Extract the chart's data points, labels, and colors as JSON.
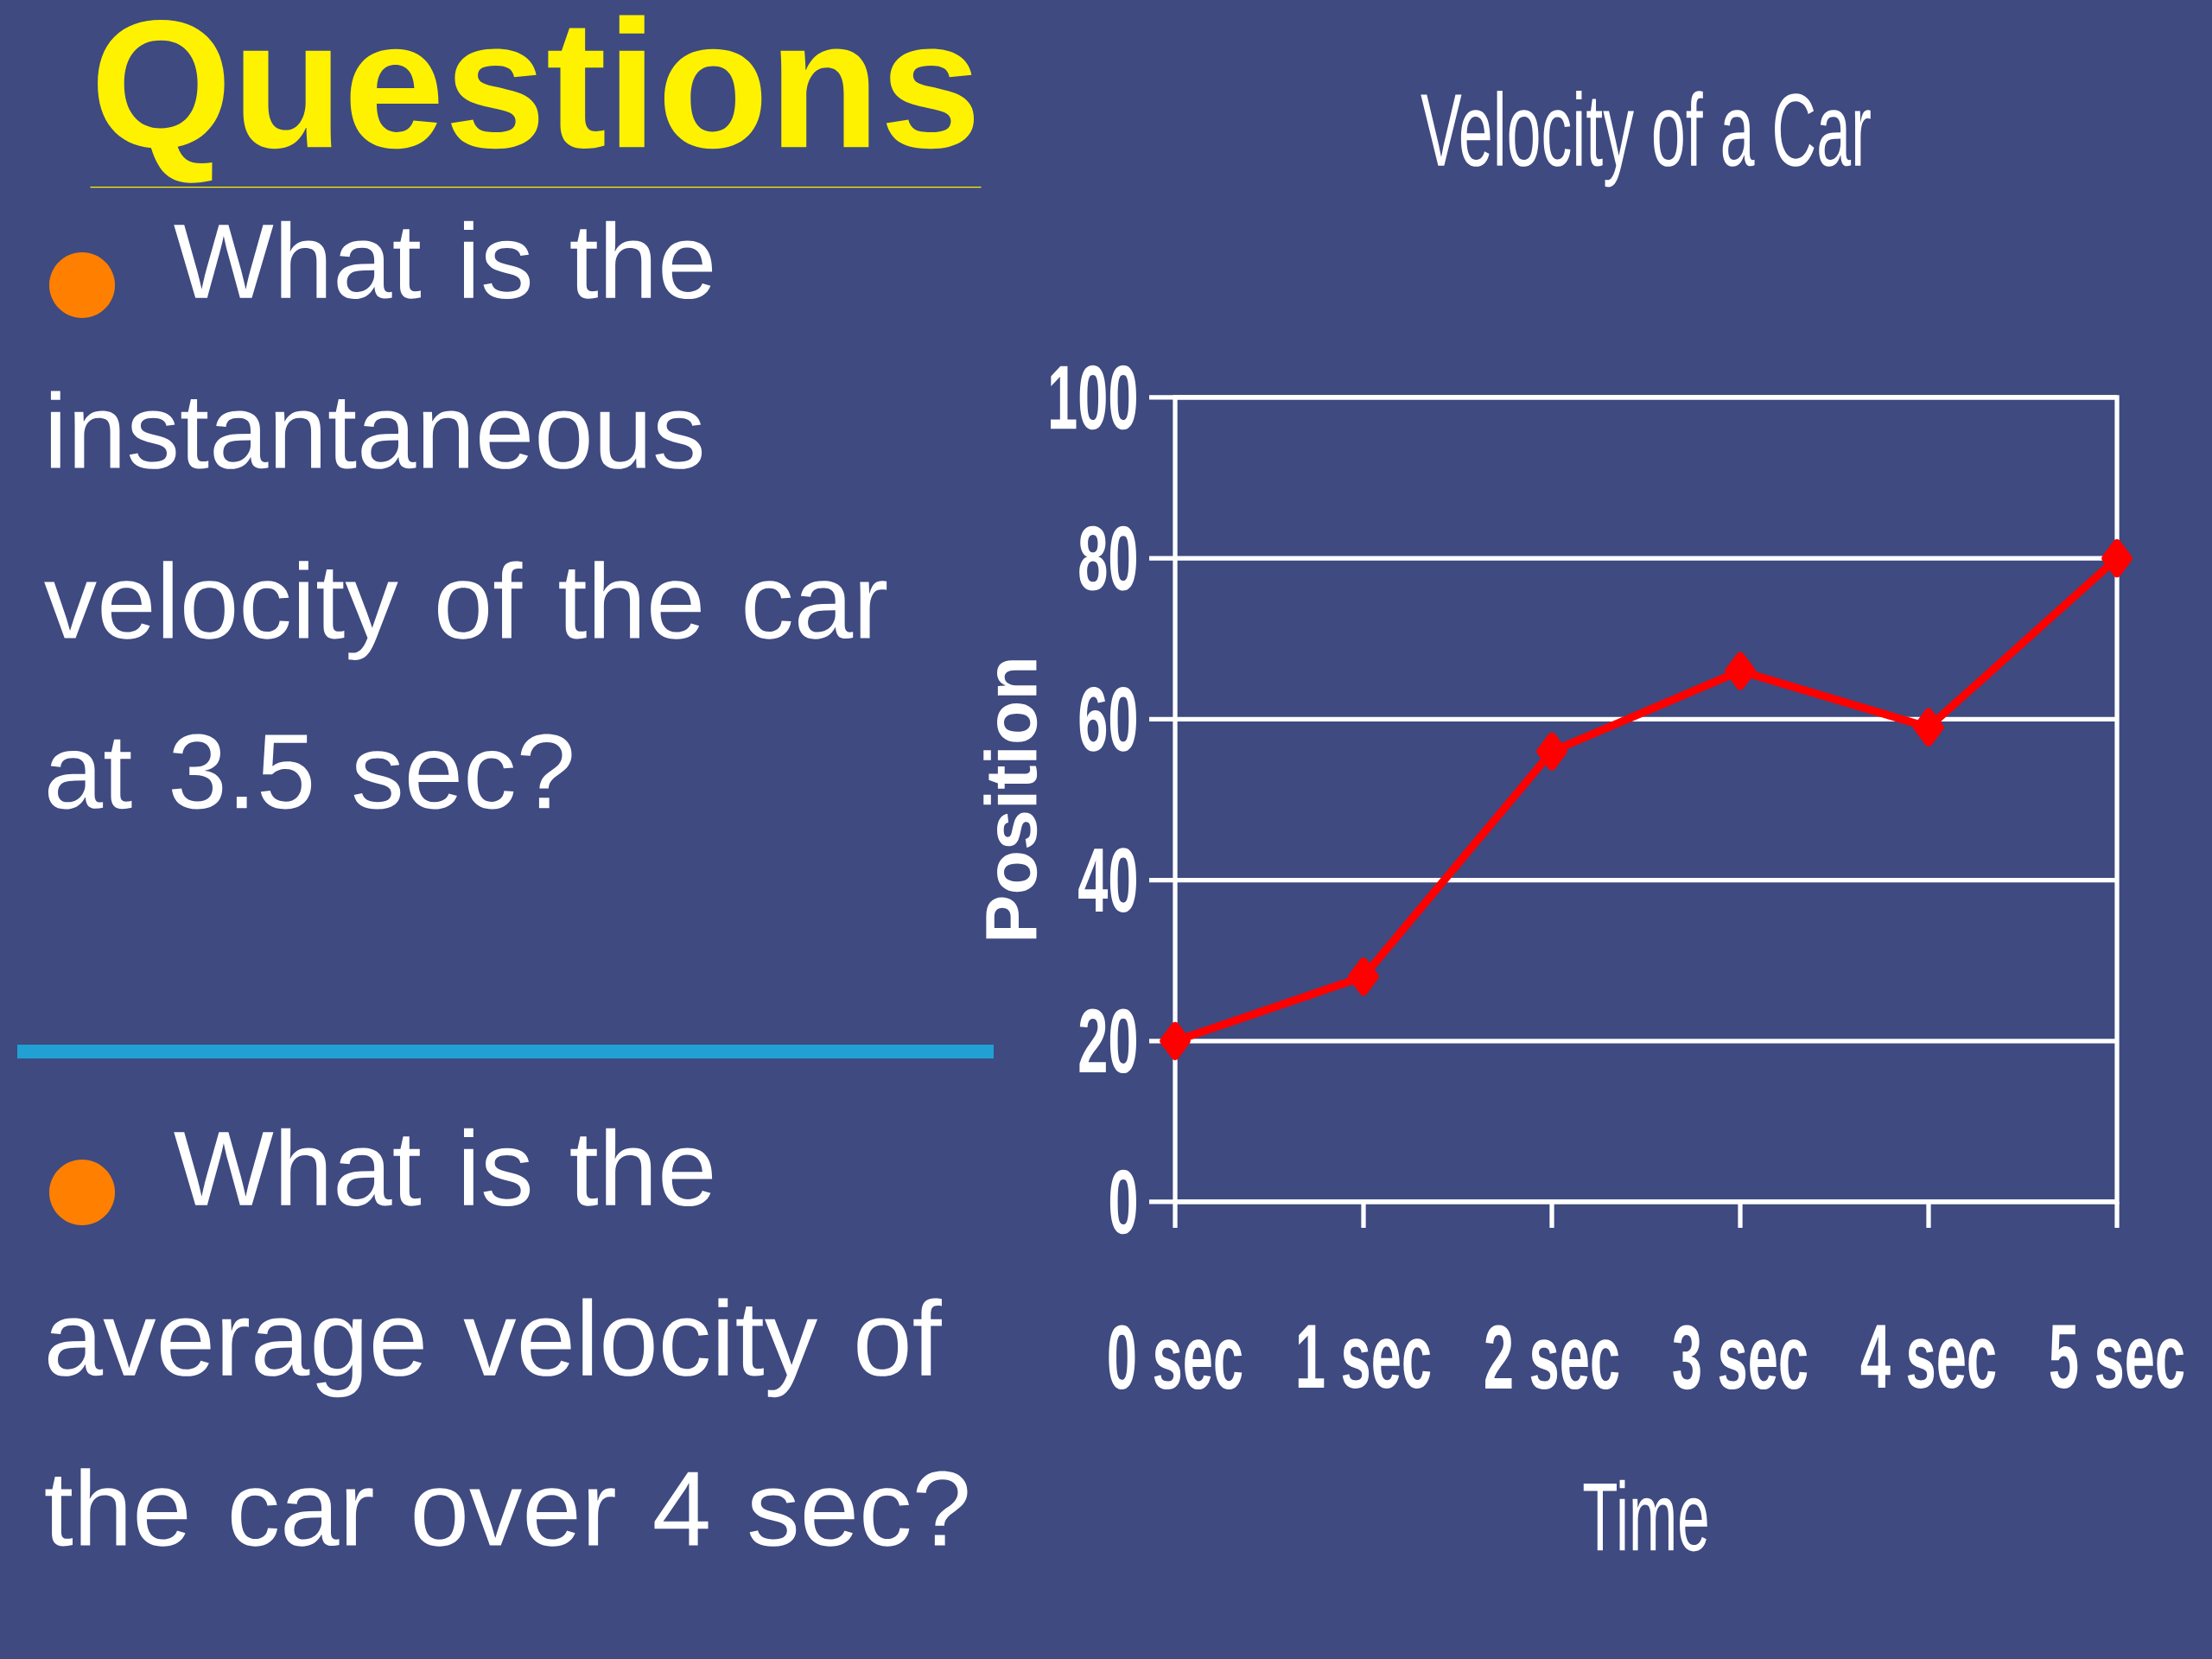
{
  "chart_data": {
    "type": "line",
    "title": "Velocity of a Car",
    "xlabel": "Time",
    "ylabel": "Position",
    "categories": [
      "0 sec",
      "1 sec",
      "2 sec",
      "3 sec",
      "4 sec",
      "5 sec"
    ],
    "series": [
      {
        "color": "#ff0000",
        "values": [
          20,
          28,
          56,
          66,
          59,
          80
        ]
      }
    ],
    "ylim": [
      0,
      100
    ],
    "yticks": [
      0,
      20,
      40,
      60,
      80,
      100
    ],
    "grid": "y",
    "marker": "diamond",
    "line_style": "solid",
    "annotations": [
      "Questions",
      "What is the instantaneous velocity of the car at 3.5 sec?",
      "What is the average velocity of the car over 4 sec?"
    ]
  }
}
